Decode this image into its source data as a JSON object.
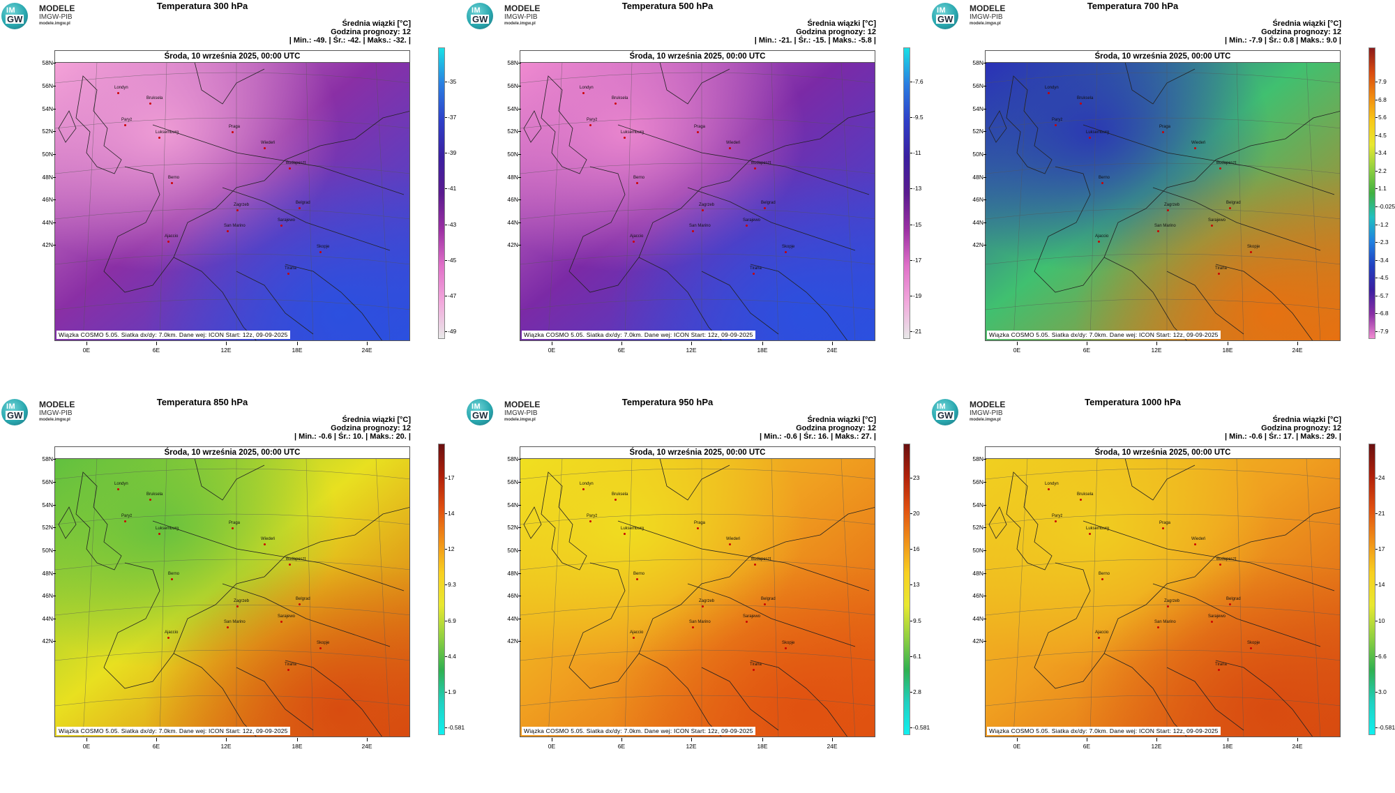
{
  "logo": {
    "im": "IM",
    "gw": "GW",
    "line1": "MODELE",
    "line2": "IMGW-PIB",
    "line3": "modele.imgw.pl"
  },
  "common": {
    "info_title": "Średnia wiązki [°C]",
    "forecast_hour": "Godzina prognozy: 12",
    "date": "Środa, 10 września 2025, 00:00 UTC",
    "footer": "Wiązka COSMO 5.05. Siatka dx/dy: 7.0km. Dane wej: ICON Start: 12z, 09-09-2025",
    "lat_labels": [
      "58N",
      "56N",
      "54N",
      "52N",
      "50N",
      "48N",
      "46N",
      "44N",
      "42N"
    ],
    "lon_labels": [
      "0E",
      "6E",
      "12E",
      "18E",
      "24E"
    ],
    "cities": [
      "Londyn",
      "Bruksela",
      "Paryż",
      "Luksemburg",
      "Praga",
      "Wiedeń",
      "Budapeszt",
      "Berno",
      "Zagrzeb",
      "Sarajewo",
      "Belgrad",
      "San Marino",
      "Ajaccio",
      "Skopje",
      "Tirana"
    ]
  },
  "panels": [
    {
      "title": "Temperatura 300 hPa",
      "stats": "| Min.:   -49. | Śr.:   -42. | Maks.:   -32. |",
      "colorbar": {
        "ticks": [
          "-35",
          "-37",
          "-39",
          "-41",
          "-43",
          "-45",
          "-47",
          "-49"
        ],
        "colors": [
          "#19e0e6",
          "#2a7de1",
          "#2e3fc8",
          "#3a1fa0",
          "#5a1b8f",
          "#9b2fa3",
          "#e070c8",
          "#f2a8dc",
          "#e8e8e8"
        ]
      },
      "field_colors": {
        "cold": "#f5a3d8",
        "mid": "#8a2fa5",
        "warm": "#2a50e0"
      }
    },
    {
      "title": "Temperatura 500 hPa",
      "stats": "| Min.:   -21. | Śr.:   -15. | Maks.:   -5.8 |",
      "colorbar": {
        "ticks": [
          "-7.6",
          "-9.5",
          "-11",
          "-13",
          "-15",
          "-17",
          "-19",
          "-21"
        ],
        "colors": [
          "#19e0e6",
          "#2a7de1",
          "#2e3fc8",
          "#3a1fa0",
          "#5a1b8f",
          "#9b2fa3",
          "#e070c8",
          "#f2a8dc",
          "#e8e8e8"
        ]
      },
      "field_colors": {
        "cold": "#f08bd0",
        "mid": "#7b2aa6",
        "warm": "#2a50e0"
      }
    },
    {
      "title": "Temperatura 700 hPa",
      "stats": "| Min.:   -7.9 | Śr.:   0.8 | Maks.:   9.0 |",
      "colorbar": {
        "ticks": [
          "7.9",
          "6.8",
          "5.6",
          "4.5",
          "3.4",
          "2.2",
          "1.1",
          "-0.025",
          "-1.2",
          "-2.3",
          "-3.4",
          "-4.5",
          "-5.7",
          "-6.8",
          "-7.9"
        ],
        "colors": [
          "#8b1a1a",
          "#d84a10",
          "#f08a10",
          "#f8c818",
          "#e8e830",
          "#90d040",
          "#40b040",
          "#20c0c0",
          "#2080e0",
          "#2040c0",
          "#3a1fa0",
          "#8a2fa5",
          "#f08bd0"
        ]
      },
      "field_colors": {
        "cold": "#2a30b8",
        "mid": "#40c070",
        "warm": "#e87010"
      }
    },
    {
      "title": "Temperatura 850 hPa",
      "stats": "| Min.:   -0.6 | Śr.:   10. | Maks.:   20. |",
      "colorbar": {
        "ticks": [
          "17",
          "14",
          "12",
          "9.3",
          "6.9",
          "4.4",
          "1.9",
          "-0.581"
        ],
        "colors": [
          "#6a1010",
          "#b0200a",
          "#e05010",
          "#f09018",
          "#f8d020",
          "#e8e830",
          "#90d040",
          "#30b050",
          "#20d0c0",
          "#10f0f0"
        ]
      },
      "field_colors": {
        "cold": "#60c040",
        "mid": "#e8e020",
        "warm": "#d84a10"
      }
    },
    {
      "title": "Temperatura 950 hPa",
      "stats": "| Min.:   -0.6 | Śr.:   16. | Maks.:   27. |",
      "colorbar": {
        "ticks": [
          "23",
          "20",
          "16",
          "13",
          "9.5",
          "6.1",
          "2.8",
          "-0.581"
        ],
        "colors": [
          "#6a1010",
          "#b0200a",
          "#e05010",
          "#f09018",
          "#f8d020",
          "#e8e830",
          "#90d040",
          "#30b050",
          "#20d0c0",
          "#10f0f0"
        ]
      },
      "field_colors": {
        "cold": "#f0e020",
        "mid": "#f0a020",
        "warm": "#e05010"
      }
    },
    {
      "title": "Temperatura 1000 hPa",
      "stats": "| Min.:   -0.6 | Śr.:   17. | Maks.:   29. |",
      "colorbar": {
        "ticks": [
          "24",
          "21",
          "17",
          "14",
          "10",
          "6.6",
          "3.0",
          "-0.581"
        ],
        "colors": [
          "#6a1010",
          "#b0200a",
          "#e05010",
          "#f09018",
          "#f8d020",
          "#e8e830",
          "#90d040",
          "#30b050",
          "#20d0c0",
          "#10f0f0"
        ]
      },
      "field_colors": {
        "cold": "#f0d020",
        "mid": "#f0a020",
        "warm": "#d84a10"
      }
    }
  ]
}
